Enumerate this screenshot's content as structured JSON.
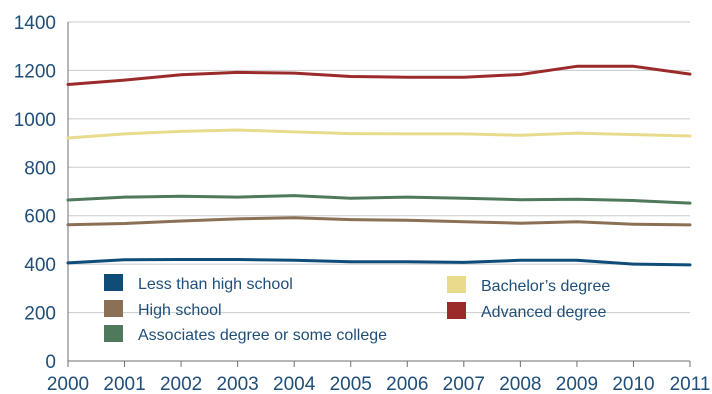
{
  "chart_data": {
    "type": "line",
    "title": "",
    "xlabel": "",
    "ylabel": "",
    "x": [
      "2000",
      "2001",
      "2002",
      "2003",
      "2004",
      "2005",
      "2006",
      "2007",
      "2008",
      "2009",
      "2010",
      "2011"
    ],
    "ylim": [
      0,
      1400
    ],
    "yticks": [
      0,
      200,
      400,
      600,
      800,
      1000,
      1200,
      1400
    ],
    "grid": true,
    "legend_position": "bottom-inside",
    "series": [
      {
        "name": "Less than high school",
        "color": "#0f4d78",
        "values": [
          405,
          418,
          419,
          419,
          416,
          410,
          410,
          407,
          416,
          416,
          400,
          397
        ]
      },
      {
        "name": "High school",
        "color": "#8c7055",
        "values": [
          563,
          568,
          578,
          587,
          592,
          584,
          581,
          575,
          569,
          575,
          565,
          562
        ]
      },
      {
        "name": "Associates degree or some college",
        "color": "#4e7a5b",
        "values": [
          665,
          677,
          680,
          677,
          683,
          672,
          677,
          672,
          666,
          668,
          663,
          652
        ]
      },
      {
        "name": "Bachelor’s degree",
        "color": "#e8dc8c",
        "values": [
          921,
          938,
          948,
          954,
          946,
          939,
          938,
          938,
          932,
          941,
          935,
          929
        ]
      },
      {
        "name": "Advanced degree",
        "color": "#9b2b2b",
        "values": [
          1142,
          1160,
          1182,
          1192,
          1189,
          1175,
          1172,
          1172,
          1183,
          1217,
          1217,
          1185
        ]
      }
    ]
  }
}
